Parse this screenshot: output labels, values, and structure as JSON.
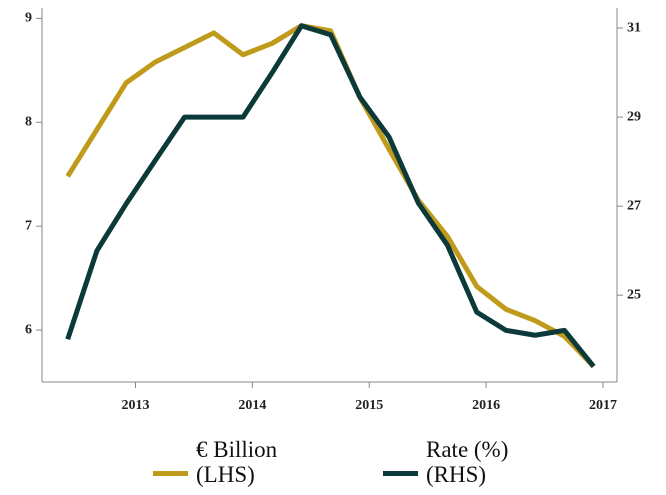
{
  "chart_data": {
    "type": "line",
    "x": [
      2012.42,
      2012.67,
      2012.92,
      2013.17,
      2013.42,
      2013.67,
      2013.92,
      2014.17,
      2014.42,
      2014.67,
      2014.92,
      2015.17,
      2015.42,
      2015.67,
      2015.92,
      2016.17,
      2016.42,
      2016.67,
      2016.92
    ],
    "xlim": [
      2012.2,
      2017.12
    ],
    "xticks": [
      2013,
      2014,
      2015,
      2016,
      2017
    ],
    "ylim": [
      5.5,
      9.1
    ],
    "yticks": [
      6,
      7,
      8,
      9
    ],
    "y2lim": [
      23.05,
      31.45
    ],
    "y2ticks": [
      25,
      27,
      29,
      31
    ],
    "series": [
      {
        "name": "€ Billion (LHS)",
        "color": "#c09a1b",
        "values": [
          7.48,
          7.93,
          8.38,
          8.58,
          8.72,
          8.86,
          8.65,
          8.76,
          8.93,
          8.88,
          8.24,
          7.74,
          7.25,
          6.9,
          6.42,
          6.2,
          6.09,
          5.94,
          5.65
        ]
      },
      {
        "name": "Rate (%) (RHS)",
        "color": "#0c3a3a",
        "axis": "y2",
        "values": [
          24.01,
          26.0,
          27.05,
          28.03,
          29.0,
          29.0,
          29.0,
          30.0,
          31.05,
          30.85,
          29.45,
          28.55,
          27.07,
          26.12,
          24.62,
          24.21,
          24.1,
          24.21,
          23.4
        ]
      }
    ]
  }
}
